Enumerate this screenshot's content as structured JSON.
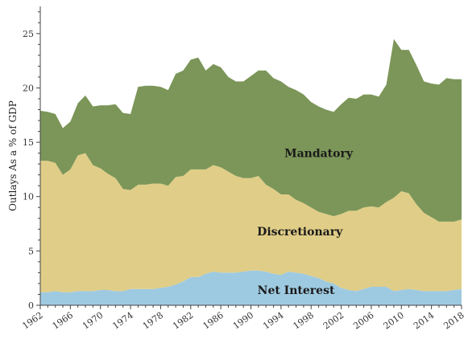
{
  "chart_data": {
    "type": "area",
    "stacked": true,
    "title": "",
    "ylabel": "Outlays As a % of GDP",
    "xlabel": "",
    "xlim": [
      1962,
      2018
    ],
    "ylim": [
      0,
      27.5
    ],
    "yticks": [
      0,
      5,
      10,
      15,
      20,
      25
    ],
    "xticks": [
      1962,
      1966,
      1970,
      1974,
      1978,
      1982,
      1986,
      1990,
      1994,
      1998,
      2002,
      2006,
      2010,
      2014,
      2018
    ],
    "grid": false,
    "legend": "none",
    "x": [
      1962,
      1963,
      1964,
      1965,
      1966,
      1967,
      1968,
      1969,
      1970,
      1971,
      1972,
      1973,
      1974,
      1975,
      1976,
      1977,
      1978,
      1979,
      1980,
      1981,
      1982,
      1983,
      1984,
      1985,
      1986,
      1987,
      1988,
      1989,
      1990,
      1991,
      1992,
      1993,
      1994,
      1995,
      1996,
      1997,
      1998,
      1999,
      2000,
      2001,
      2002,
      2003,
      2004,
      2005,
      2006,
      2007,
      2008,
      2009,
      2010,
      2011,
      2012,
      2013,
      2014,
      2015,
      2016,
      2017,
      2018
    ],
    "series": [
      {
        "name": "Net Interest",
        "color": "#9ecae1",
        "values": [
          1.2,
          1.2,
          1.3,
          1.2,
          1.2,
          1.3,
          1.3,
          1.3,
          1.4,
          1.4,
          1.3,
          1.3,
          1.5,
          1.5,
          1.5,
          1.5,
          1.6,
          1.7,
          1.9,
          2.2,
          2.6,
          2.6,
          2.9,
          3.1,
          3.0,
          3.0,
          3.0,
          3.1,
          3.2,
          3.2,
          3.1,
          2.9,
          2.8,
          3.1,
          3.0,
          2.9,
          2.7,
          2.5,
          2.2,
          2.0,
          1.6,
          1.4,
          1.3,
          1.5,
          1.7,
          1.7,
          1.7,
          1.3,
          1.4,
          1.5,
          1.4,
          1.3,
          1.3,
          1.3,
          1.3,
          1.4,
          1.5
        ]
      },
      {
        "name": "Discretionary",
        "color": "#e0cd87",
        "values": [
          12.1,
          12.1,
          11.8,
          10.8,
          11.3,
          12.5,
          12.7,
          11.6,
          11.2,
          10.7,
          10.4,
          9.4,
          9.1,
          9.6,
          9.6,
          9.7,
          9.6,
          9.3,
          9.9,
          9.7,
          9.9,
          9.9,
          9.6,
          9.8,
          9.7,
          9.3,
          8.9,
          8.6,
          8.5,
          8.7,
          8.0,
          7.8,
          7.4,
          7.1,
          6.7,
          6.5,
          6.3,
          6.1,
          6.2,
          6.2,
          6.8,
          7.3,
          7.4,
          7.5,
          7.4,
          7.3,
          7.8,
          8.6,
          9.1,
          8.8,
          7.9,
          7.2,
          6.8,
          6.4,
          6.4,
          6.3,
          6.4
        ]
      },
      {
        "name": "Mandatory",
        "color": "#7b9658",
        "values": [
          4.6,
          4.5,
          4.5,
          4.3,
          4.4,
          4.8,
          5.3,
          5.4,
          5.8,
          6.3,
          6.8,
          7.0,
          7.0,
          9.0,
          9.1,
          9.0,
          8.9,
          8.8,
          9.5,
          9.7,
          10.1,
          10.3,
          9.1,
          9.3,
          9.2,
          8.7,
          8.7,
          8.9,
          9.4,
          9.7,
          10.5,
          10.2,
          10.4,
          9.9,
          10.1,
          10.0,
          9.7,
          9.7,
          9.6,
          9.6,
          10.1,
          10.4,
          10.3,
          10.4,
          10.3,
          10.2,
          10.8,
          14.6,
          13.0,
          13.2,
          12.8,
          12.1,
          12.3,
          12.6,
          13.2,
          13.1,
          12.9
        ]
      }
    ],
    "annotations": [
      {
        "text": "Mandatory",
        "x": 1999,
        "y": 14.0
      },
      {
        "text": "Discretionary",
        "x": 1996.5,
        "y": 6.8
      },
      {
        "text": "Net Interest",
        "x": 1996,
        "y": 1.4
      }
    ]
  }
}
